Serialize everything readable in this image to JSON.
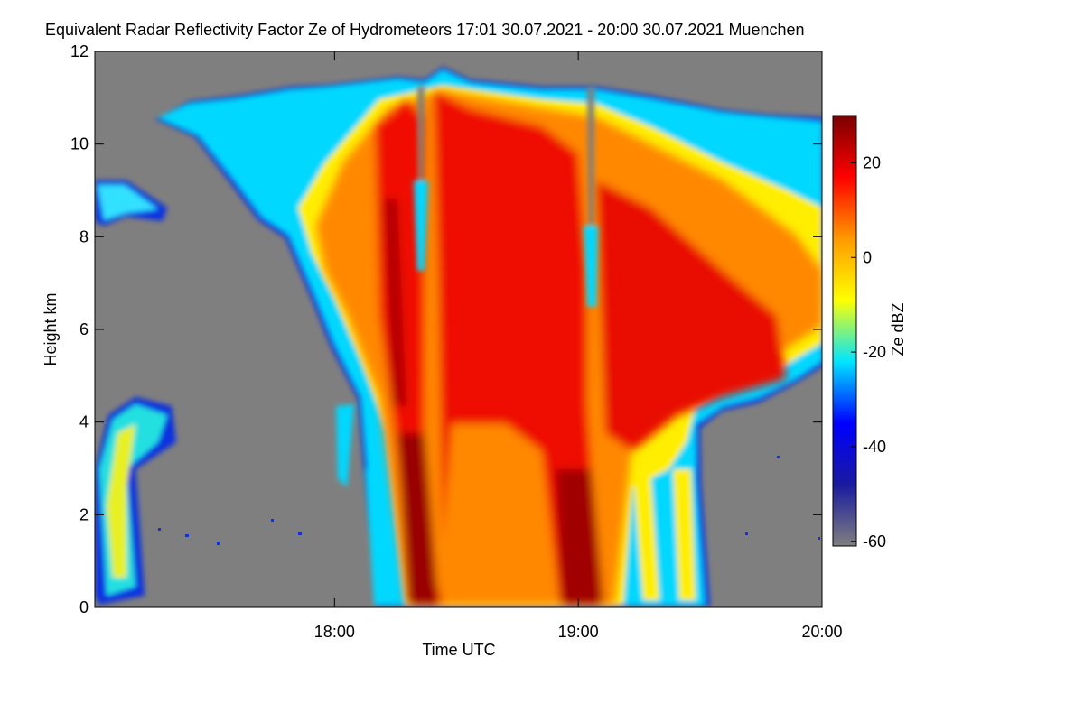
{
  "chart_data": {
    "type": "heatmap",
    "title": "Equivalent Radar Reflectivity Factor Ze of Hydrometeors   17:01 30.07.2021 - 20:00 30.07.2021 Muenchen",
    "x_label": "Time UTC",
    "y_label": "Height km",
    "xlim": [
      1021,
      1200
    ],
    "xticks": [
      {
        "value": 1080,
        "label": "18:00"
      },
      {
        "value": 1140,
        "label": "19:00"
      },
      {
        "value": 1200,
        "label": "20:00"
      }
    ],
    "ylim": [
      0,
      12
    ],
    "yticks": [
      0,
      2,
      4,
      6,
      8,
      10,
      12
    ],
    "colorbar_label": "Ze dBZ",
    "zlim": [
      -61,
      30
    ],
    "zticks": [
      -60,
      -40,
      -20,
      0,
      20
    ],
    "colormap": [
      "#7f7f7f",
      "#1a1aa0",
      "#0000ff",
      "#00e5ff",
      "#ffff00",
      "#ff9900",
      "#ff0000",
      "#7a0000"
    ]
  }
}
